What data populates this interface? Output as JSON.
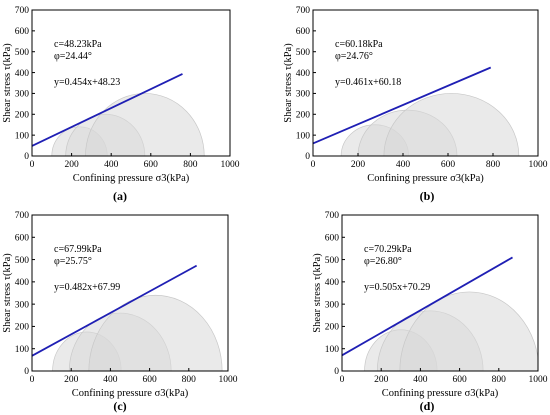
{
  "colors": {
    "fit_line": "#1f1fb4",
    "circle_fill": "#d9d9d9",
    "circle_stroke": "#c8c8c8",
    "axis": "#000000"
  },
  "chart_data": [
    {
      "type": "line",
      "panel_label": "(a)",
      "xlabel": "Confining pressure σ3(kPa)",
      "ylabel": "Shear stress τ(kPa)",
      "xlim": [
        0,
        1000
      ],
      "ylim": [
        0,
        700
      ],
      "xticks": [
        "0",
        "200",
        "400",
        "600",
        "800",
        "1000"
      ],
      "yticks": [
        "0",
        "100",
        "200",
        "300",
        "400",
        "500",
        "600",
        "700"
      ],
      "annotation": {
        "c": "c=48.23kPa",
        "phi": "φ=24.44°",
        "equation": "y=0.454x+48.23"
      },
      "fit_line": {
        "slope": 0.454,
        "intercept": 48.23,
        "x": [
          0,
          760
        ]
      },
      "circles": [
        {
          "center": 240,
          "radius": 140
        },
        {
          "center": 370,
          "radius": 200
        },
        {
          "center": 570,
          "radius": 300
        }
      ]
    },
    {
      "type": "line",
      "panel_label": "(b)",
      "xlabel": "Confining pressure σ3(kPa)",
      "ylabel": "Shear stress τ(kPa)",
      "xlim": [
        0,
        1000
      ],
      "ylim": [
        0,
        700
      ],
      "xticks": [
        "0",
        "200",
        "400",
        "600",
        "800",
        "1000"
      ],
      "yticks": [
        "0",
        "100",
        "200",
        "300",
        "400",
        "500",
        "600",
        "700"
      ],
      "annotation": {
        "c": "c=60.18kPa",
        "phi": "φ=24.76°",
        "equation": "y=0.461x+60.18"
      },
      "fit_line": {
        "slope": 0.461,
        "intercept": 60.18,
        "x": [
          0,
          790
        ]
      },
      "circles": [
        {
          "center": 275,
          "radius": 150
        },
        {
          "center": 420,
          "radius": 220
        },
        {
          "center": 615,
          "radius": 300
        }
      ]
    },
    {
      "type": "line",
      "panel_label": "(c)",
      "xlabel": "Confining pressure σ3(kPa)",
      "ylabel": "Shear stress τ(kPa)",
      "xlim": [
        0,
        1000
      ],
      "ylim": [
        0,
        700
      ],
      "xticks": [
        "0",
        "200",
        "400",
        "600",
        "800",
        "1000"
      ],
      "yticks": [
        "0",
        "100",
        "200",
        "300",
        "400",
        "500",
        "600",
        "700"
      ],
      "annotation": {
        "c": "c=67.99kPa",
        "phi": "φ=25.75°",
        "equation": "y=0.482x+67.99"
      },
      "fit_line": {
        "slope": 0.482,
        "intercept": 67.99,
        "x": [
          0,
          840
        ]
      },
      "circles": [
        {
          "center": 280,
          "radius": 175
        },
        {
          "center": 450,
          "radius": 260
        },
        {
          "center": 630,
          "radius": 340
        }
      ]
    },
    {
      "type": "line",
      "panel_label": "(d)",
      "xlabel": "Confining pressure σ3(kPa)",
      "ylabel": "Shear stress τ(kPa)",
      "xlim": [
        0,
        1000
      ],
      "ylim": [
        0,
        700
      ],
      "xticks": [
        "0",
        "200",
        "400",
        "600",
        "800",
        "1000"
      ],
      "yticks": [
        "0",
        "100",
        "200",
        "300",
        "400",
        "500",
        "600",
        "700"
      ],
      "annotation": {
        "c": "c=70.29kPa",
        "phi": "φ=26.80°",
        "equation": "y=0.505x+70.29"
      },
      "fit_line": {
        "slope": 0.505,
        "intercept": 70.29,
        "x": [
          0,
          870
        ]
      },
      "circles": [
        {
          "center": 300,
          "radius": 185
        },
        {
          "center": 450,
          "radius": 270
        },
        {
          "center": 650,
          "radius": 355
        }
      ]
    }
  ]
}
